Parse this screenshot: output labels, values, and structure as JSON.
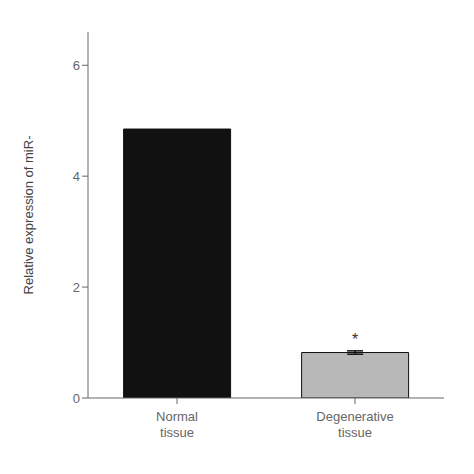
{
  "chart_data": {
    "type": "bar",
    "categories": [
      "Normal\ntissue",
      "Degenerative\ntissue"
    ],
    "values": [
      4.85,
      0.82
    ],
    "colors": [
      "#111111",
      "#b8b8b8"
    ],
    "errors": [
      null,
      0.03
    ],
    "ylabel": "Relative expression of miR-",
    "ylim": [
      0,
      6.6
    ],
    "yticks": [
      0,
      2,
      4,
      6
    ],
    "grid": false,
    "annotations": [
      {
        "text": "*",
        "category": "Degenerative\ntissue"
      }
    ]
  }
}
